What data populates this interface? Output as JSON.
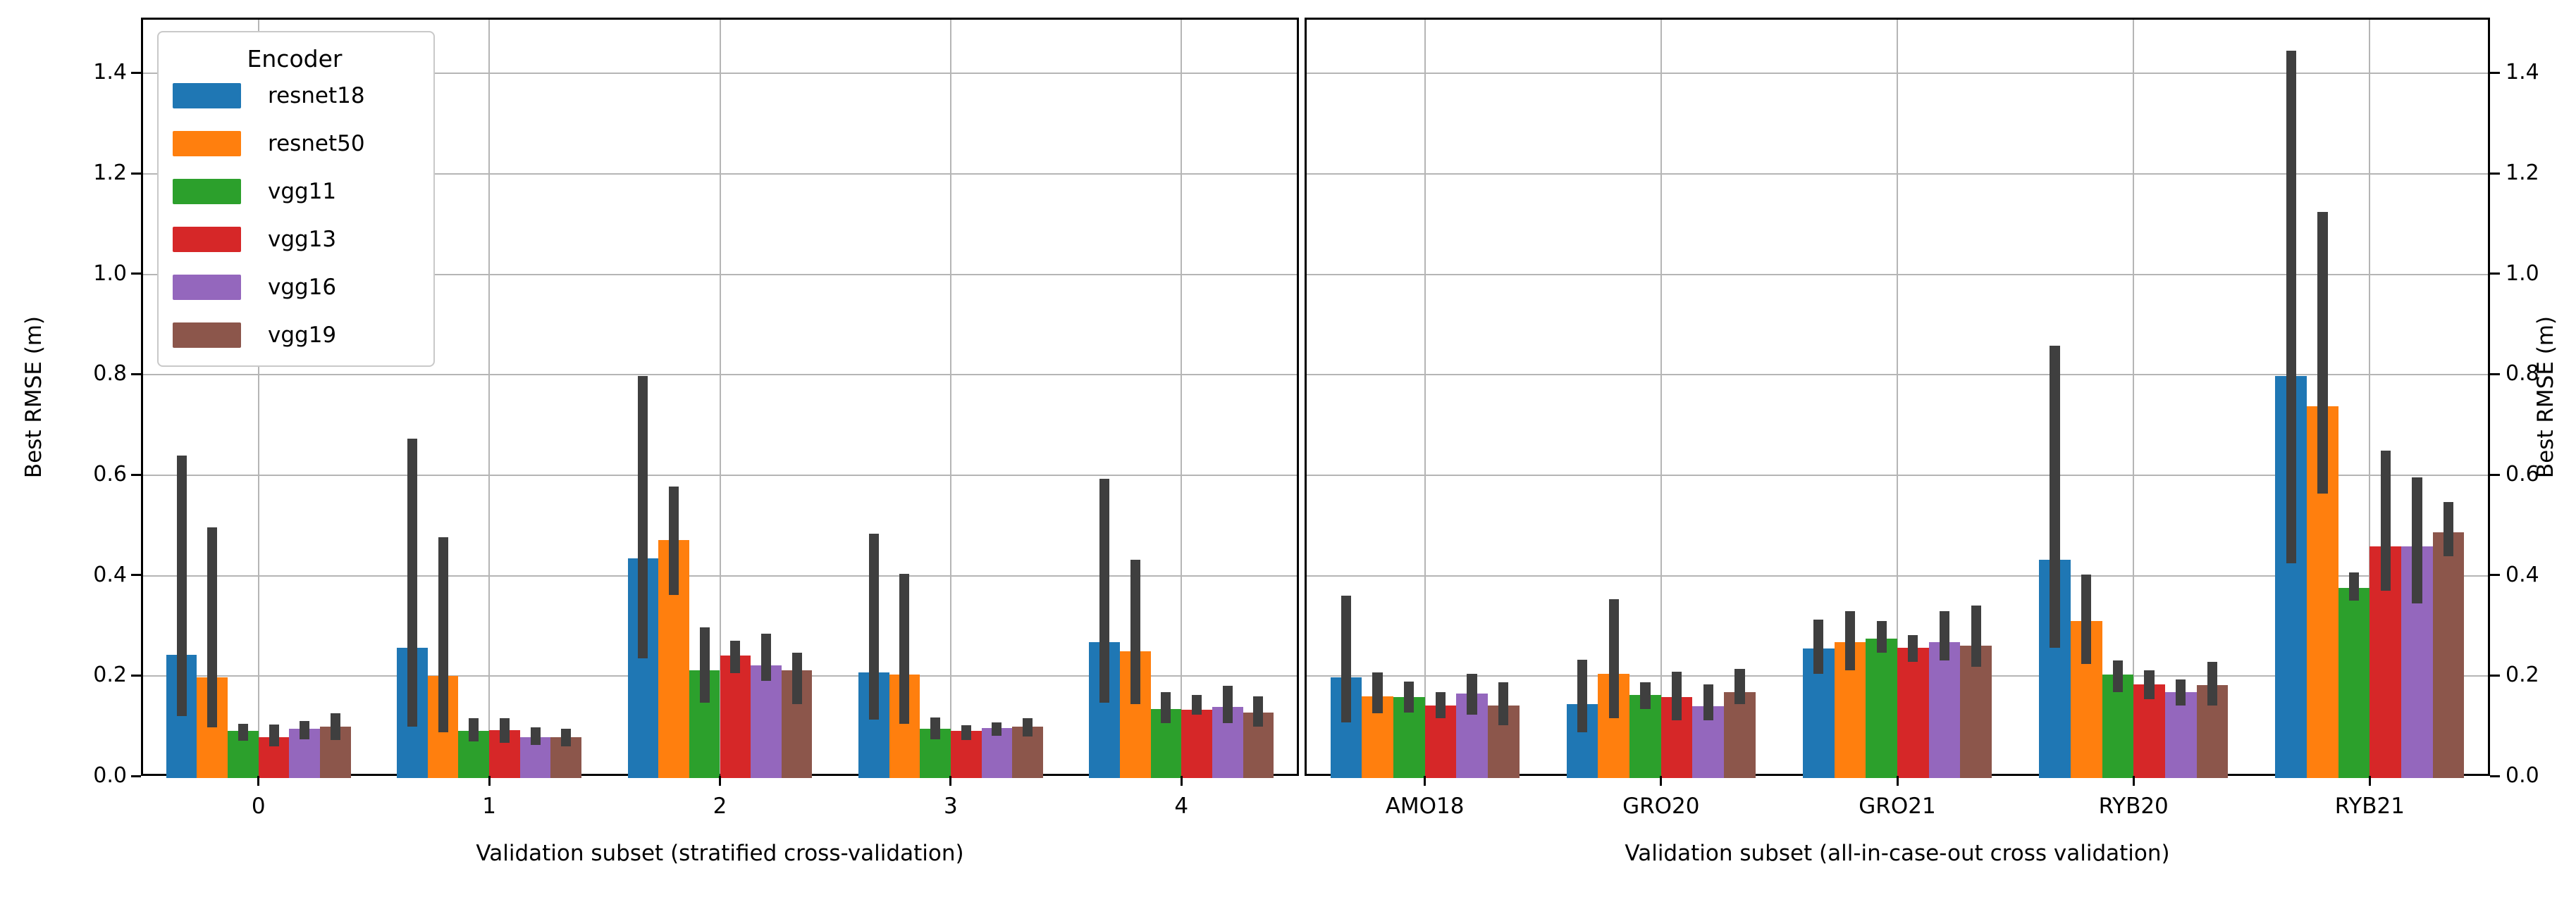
{
  "y_axis": {
    "label": "Best RMSE (m)",
    "ticks": [
      "0.0",
      "0.2",
      "0.4",
      "0.6",
      "0.8",
      "1.0",
      "1.2",
      "1.4"
    ],
    "tick_values": [
      0.0,
      0.2,
      0.4,
      0.6,
      0.8,
      1.0,
      1.2,
      1.4
    ]
  },
  "legend": {
    "title": "Encoder",
    "entries": [
      {
        "label": "resnet18",
        "color": "#1f77b4"
      },
      {
        "label": "resnet50",
        "color": "#ff7f0e"
      },
      {
        "label": "vgg11",
        "color": "#2ca02c"
      },
      {
        "label": "vgg13",
        "color": "#d62728"
      },
      {
        "label": "vgg16",
        "color": "#9467bd"
      },
      {
        "label": "vgg19",
        "color": "#8c564b"
      }
    ]
  },
  "style": {
    "error_bar_color": "#3f3f3f",
    "grid_color": "#b5b5b5",
    "spine_color": "#000000",
    "background": "#ffffff"
  },
  "chart_data": [
    {
      "type": "bar",
      "panel": "left",
      "categories": [
        "0",
        "1",
        "2",
        "3",
        "4"
      ],
      "xlabel": "Validation subset (stratified cross-validation)",
      "ylabel": "Best RMSE (m)",
      "ylim": [
        0,
        1.51
      ],
      "grid": true,
      "legend_position": "upper left",
      "series": [
        {
          "name": "resnet18",
          "color": "#1f77b4",
          "values": [
            0.245,
            0.259,
            0.437,
            0.21,
            0.27
          ],
          "err_low": [
            0.124,
            0.103,
            0.238,
            0.116,
            0.15
          ],
          "err_high": [
            0.642,
            0.676,
            0.8,
            0.486,
            0.596
          ]
        },
        {
          "name": "resnet50",
          "color": "#ff7f0e",
          "values": [
            0.201,
            0.203,
            0.474,
            0.206,
            0.253
          ],
          "err_low": [
            0.101,
            0.091,
            0.364,
            0.108,
            0.147
          ],
          "err_high": [
            0.499,
            0.479,
            0.58,
            0.406,
            0.434
          ]
        },
        {
          "name": "vgg11",
          "color": "#2ca02c",
          "values": [
            0.094,
            0.094,
            0.215,
            0.098,
            0.137
          ],
          "err_low": [
            0.075,
            0.073,
            0.15,
            0.077,
            0.109
          ],
          "err_high": [
            0.108,
            0.119,
            0.3,
            0.12,
            0.171
          ]
        },
        {
          "name": "vgg13",
          "color": "#d62728",
          "values": [
            0.082,
            0.096,
            0.244,
            0.094,
            0.136
          ],
          "err_low": [
            0.063,
            0.07,
            0.209,
            0.075,
            0.126
          ],
          "err_high": [
            0.107,
            0.119,
            0.273,
            0.105,
            0.165
          ]
        },
        {
          "name": "vgg16",
          "color": "#9467bd",
          "values": [
            0.098,
            0.082,
            0.225,
            0.1,
            0.141
          ],
          "err_low": [
            0.077,
            0.066,
            0.193,
            0.084,
            0.109
          ],
          "err_high": [
            0.114,
            0.101,
            0.287,
            0.111,
            0.183
          ]
        },
        {
          "name": "vgg19",
          "color": "#8c564b",
          "values": [
            0.102,
            0.082,
            0.214,
            0.103,
            0.13
          ],
          "err_low": [
            0.075,
            0.063,
            0.147,
            0.082,
            0.102
          ],
          "err_high": [
            0.129,
            0.098,
            0.249,
            0.119,
            0.162
          ]
        }
      ]
    },
    {
      "type": "bar",
      "panel": "right",
      "categories": [
        "AMO18",
        "GRO20",
        "GRO21",
        "RYB20",
        "RYB21"
      ],
      "xlabel": "Validation subset (all-in-case-out cross validation)",
      "ylabel": "Best RMSE (m)",
      "ylim": [
        0,
        1.51
      ],
      "grid": true,
      "series": [
        {
          "name": "resnet18",
          "color": "#1f77b4",
          "values": [
            0.2,
            0.147,
            0.258,
            0.434,
            0.8
          ],
          "err_low": [
            0.111,
            0.091,
            0.208,
            0.259,
            0.428
          ],
          "err_high": [
            0.363,
            0.236,
            0.315,
            0.861,
            1.448
          ]
        },
        {
          "name": "resnet50",
          "color": "#ff7f0e",
          "values": [
            0.162,
            0.207,
            0.27,
            0.312,
            0.74
          ],
          "err_low": [
            0.129,
            0.119,
            0.215,
            0.227,
            0.566
          ],
          "err_high": [
            0.21,
            0.356,
            0.332,
            0.405,
            1.127
          ]
        },
        {
          "name": "vgg11",
          "color": "#2ca02c",
          "values": [
            0.161,
            0.165,
            0.278,
            0.206,
            0.379
          ],
          "err_low": [
            0.131,
            0.138,
            0.25,
            0.171,
            0.353
          ],
          "err_high": [
            0.192,
            0.191,
            0.312,
            0.234,
            0.409
          ]
        },
        {
          "name": "vgg13",
          "color": "#d62728",
          "values": [
            0.145,
            0.161,
            0.259,
            0.187,
            0.461
          ],
          "err_low": [
            0.119,
            0.115,
            0.231,
            0.157,
            0.373
          ],
          "err_high": [
            0.171,
            0.212,
            0.285,
            0.215,
            0.652
          ]
        },
        {
          "name": "vgg16",
          "color": "#9467bd",
          "values": [
            0.168,
            0.143,
            0.27,
            0.171,
            0.461
          ],
          "err_low": [
            0.126,
            0.115,
            0.234,
            0.145,
            0.348
          ],
          "err_high": [
            0.207,
            0.187,
            0.332,
            0.196,
            0.598
          ]
        },
        {
          "name": "vgg19",
          "color": "#8c564b",
          "values": [
            0.145,
            0.171,
            0.264,
            0.185,
            0.49
          ],
          "err_low": [
            0.105,
            0.147,
            0.222,
            0.145,
            0.441
          ],
          "err_high": [
            0.191,
            0.217,
            0.343,
            0.231,
            0.549
          ]
        }
      ]
    }
  ]
}
